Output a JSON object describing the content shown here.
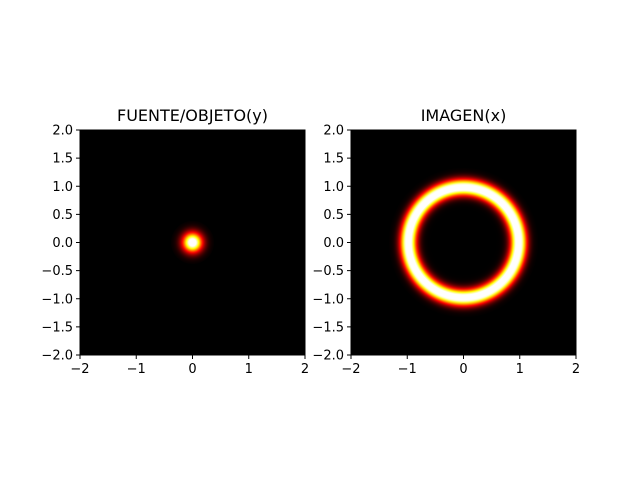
{
  "chart_data": [
    {
      "type": "heatmap",
      "title": "FUENTE/OBJETO(y)",
      "content": "bright gaussian spot",
      "center": [
        0,
        0
      ],
      "spot_sigma": 0.12,
      "colormap": "hot",
      "background_color": "#000000",
      "xlim": [
        -2,
        2
      ],
      "ylim": [
        -2,
        2
      ],
      "xticks": [
        -2,
        -1,
        0,
        1,
        2
      ],
      "yticks": [
        2.0,
        1.5,
        1.0,
        0.5,
        0.0,
        -0.5,
        -1.0,
        -1.5,
        -2.0
      ],
      "xtick_labels": [
        "−2",
        "−1",
        "0",
        "1",
        "2"
      ],
      "ytick_labels": [
        "2.0",
        "1.5",
        "1.0",
        "0.5",
        "0.0",
        "−0.5",
        "−1.0",
        "−1.5",
        "−2.0"
      ],
      "grid": false
    },
    {
      "type": "heatmap",
      "title": "IMAGEN(x)",
      "content": "bright ring (Einstein ring)",
      "center": [
        0,
        0
      ],
      "ring_radius": 0.98,
      "ring_sigma": 0.1,
      "colormap": "hot",
      "background_color": "#000000",
      "xlim": [
        -2,
        2
      ],
      "ylim": [
        -2,
        2
      ],
      "xticks": [
        -2,
        -1,
        0,
        1,
        2
      ],
      "yticks": [
        2.0,
        1.5,
        1.0,
        0.5,
        0.0,
        -0.5,
        -1.0,
        -1.5,
        -2.0
      ],
      "xtick_labels": [
        "−2",
        "−1",
        "0",
        "1",
        "2"
      ],
      "ytick_labels": [
        "2.0",
        "1.5",
        "1.0",
        "0.5",
        "0.0",
        "−0.5",
        "−1.0",
        "−1.5",
        "−2.0"
      ],
      "grid": false
    }
  ]
}
